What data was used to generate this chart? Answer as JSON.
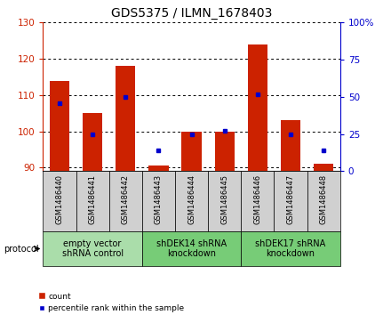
{
  "title": "GDS5375 / ILMN_1678403",
  "samples": [
    "GSM1486440",
    "GSM1486441",
    "GSM1486442",
    "GSM1486443",
    "GSM1486444",
    "GSM1486445",
    "GSM1486446",
    "GSM1486447",
    "GSM1486448"
  ],
  "counts": [
    114,
    105,
    118,
    90.5,
    100,
    100,
    124,
    103,
    91
  ],
  "percentiles": [
    46,
    25,
    50,
    14,
    25,
    27,
    52,
    25,
    14
  ],
  "ylim_left": [
    89,
    130
  ],
  "ylim_right": [
    0,
    100
  ],
  "yticks_left": [
    90,
    100,
    110,
    120,
    130
  ],
  "yticks_right": [
    0,
    25,
    50,
    75,
    100
  ],
  "bar_color": "#cc2200",
  "dot_color": "#0000cc",
  "groups": [
    {
      "label": "empty vector\nshRNA control",
      "start": 0,
      "end": 3,
      "color": "#aaddaa"
    },
    {
      "label": "shDEK14 shRNA\nknockdown",
      "start": 3,
      "end": 6,
      "color": "#77cc77"
    },
    {
      "label": "shDEK17 shRNA\nknockdown",
      "start": 6,
      "end": 9,
      "color": "#77cc77"
    }
  ],
  "protocol_label": "protocol",
  "legend_count": "count",
  "legend_pct": "percentile rank within the sample",
  "title_fontsize": 10,
  "tick_fontsize": 7.5,
  "group_fontsize": 7,
  "sample_fontsize": 6
}
